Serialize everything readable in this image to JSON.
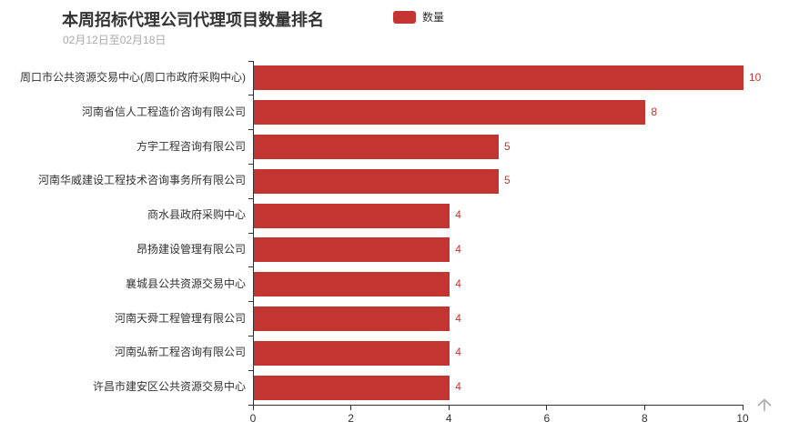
{
  "header": {
    "title": "本周招标代理公司代理项目数量排名",
    "subtitle": "02月12日至02月18日"
  },
  "legend": {
    "label": "数量",
    "color": "#c23531"
  },
  "colors": {
    "bar": "#c23531",
    "value_label": "#c23531",
    "axis_line": "#333333",
    "axis_text": "#333333",
    "category_text": "#333333",
    "title_text": "#333333",
    "subtitle_text": "#aaaaaa",
    "arrow_icon": "#aaaaaa",
    "background": "#ffffff"
  },
  "icons": {
    "back_to_top": "up-arrow-icon"
  },
  "chart_data": {
    "type": "bar",
    "orientation": "horizontal",
    "title": "本周招标代理公司代理项目数量排名",
    "subtitle": "02月12日至02月18日",
    "categories": [
      "周口市公共资源交易中心(周口市政府采购中心)",
      "河南省信人工程造价咨询有限公司",
      "方宇工程咨询有限公司",
      "河南华威建设工程技术咨询事务所有限公司",
      "商水县政府采购中心",
      "昂扬建设管理有限公司",
      "襄城县公共资源交易中心",
      "河南天舜工程管理有限公司",
      "河南弘新工程咨询有限公司",
      "许昌市建安区公共资源交易中心"
    ],
    "series": [
      {
        "name": "数量",
        "color": "#c23531",
        "values": [
          10,
          8,
          5,
          5,
          4,
          4,
          4,
          4,
          4,
          4
        ]
      }
    ],
    "xlabel": "",
    "ylabel": "",
    "xlim": [
      0,
      10
    ],
    "x_ticks": [
      0,
      2,
      4,
      6,
      8,
      10
    ],
    "grid": false,
    "legend_position": "top",
    "value_labels": "end-of-bar"
  }
}
